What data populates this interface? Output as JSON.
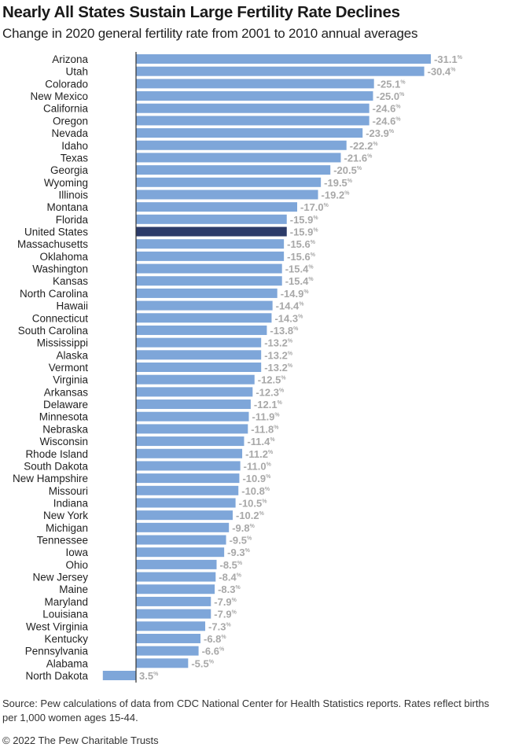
{
  "title": "Nearly All States Sustain Large Fertility Rate Declines",
  "subtitle": "Change in 2020 general fertility rate from 2001 to 2010 annual averages",
  "source": "Source: Pew calculations of data from CDC National Center for Health Statistics reports. Rates reflect births per 1,000 women ages 15-44.",
  "copyright": "© 2022 The Pew Charitable Trusts",
  "chart_data": {
    "type": "bar",
    "orientation": "horizontal",
    "title": "Nearly All States Sustain Large Fertility Rate Declines",
    "subtitle": "Change in 2020 general fertility rate from 2001 to 2010 annual averages",
    "unit": "%",
    "categories": [
      "Arizona",
      "Utah",
      "Colorado",
      "New Mexico",
      "California",
      "Oregon",
      "Nevada",
      "Idaho",
      "Texas",
      "Georgia",
      "Wyoming",
      "Illinois",
      "Montana",
      "Florida",
      "United States",
      "Massachusetts",
      "Oklahoma",
      "Washington",
      "Kansas",
      "North Carolina",
      "Hawaii",
      "Connecticut",
      "South Carolina",
      "Mississippi",
      "Alaska",
      "Vermont",
      "Virginia",
      "Arkansas",
      "Delaware",
      "Minnesota",
      "Nebraska",
      "Wisconsin",
      "Rhode Island",
      "South Dakota",
      "New Hampshire",
      "Missouri",
      "Indiana",
      "New York",
      "Michigan",
      "Tennessee",
      "Iowa",
      "Ohio",
      "New Jersey",
      "Maine",
      "Maryland",
      "Louisiana",
      "West Virginia",
      "Kentucky",
      "Pennsylvania",
      "Alabama",
      "North Dakota"
    ],
    "values": [
      -31.1,
      -30.4,
      -25.1,
      -25.0,
      -24.6,
      -24.6,
      -23.9,
      -22.2,
      -21.6,
      -20.5,
      -19.5,
      -19.2,
      -17.0,
      -15.9,
      -15.9,
      -15.6,
      -15.6,
      -15.4,
      -15.4,
      -14.9,
      -14.4,
      -14.3,
      -13.8,
      -13.2,
      -13.2,
      -13.2,
      -12.5,
      -12.3,
      -12.1,
      -11.9,
      -11.8,
      -11.4,
      -11.2,
      -11.0,
      -10.9,
      -10.8,
      -10.5,
      -10.2,
      -9.8,
      -9.5,
      -9.3,
      -8.5,
      -8.4,
      -8.3,
      -7.9,
      -7.9,
      -7.3,
      -6.8,
      -6.6,
      -5.5,
      3.5
    ],
    "highlight": "United States",
    "colors": {
      "bar": "#7ea6d9",
      "highlight": "#2c3b69",
      "label": "#a8a8a8",
      "axis": "#333333"
    },
    "grid": false,
    "legend": "none"
  }
}
